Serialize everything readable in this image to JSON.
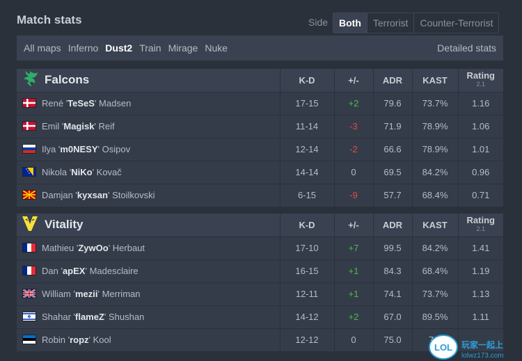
{
  "header": {
    "title": "Match stats",
    "side_label": "Side",
    "side_options": [
      "Both",
      "Terrorist",
      "Counter-Terrorist"
    ],
    "side_selected": "Both"
  },
  "maps": {
    "items": [
      "All maps",
      "Inferno",
      "Dust2",
      "Train",
      "Mirage",
      "Nuke"
    ],
    "selected": "Dust2",
    "detailed_label": "Detailed stats"
  },
  "columns": {
    "kd": "K-D",
    "diff": "+/-",
    "adr": "ADR",
    "kast": "KAST",
    "rating": "Rating",
    "rating_version": "2.1"
  },
  "teams": [
    {
      "name": "Falcons",
      "logo_icon": "falcons-logo",
      "players": [
        {
          "first": "René '",
          "nick": "TeSeS",
          "last": "' Madsen",
          "flag": "denmark",
          "kd": "17-15",
          "diff": "+2",
          "adr": "79.6",
          "kast": "73.7%",
          "rating": "1.16"
        },
        {
          "first": "Emil '",
          "nick": "Magisk",
          "last": "' Reif",
          "flag": "denmark",
          "kd": "11-14",
          "diff": "-3",
          "adr": "71.9",
          "kast": "78.9%",
          "rating": "1.06"
        },
        {
          "first": "Ilya '",
          "nick": "m0NESY",
          "last": "' Osipov",
          "flag": "russia",
          "kd": "12-14",
          "diff": "-2",
          "adr": "66.6",
          "kast": "78.9%",
          "rating": "1.01"
        },
        {
          "first": "Nikola '",
          "nick": "NiKo",
          "last": "' Kovač",
          "flag": "bosnia",
          "kd": "14-14",
          "diff": "0",
          "adr": "69.5",
          "kast": "84.2%",
          "rating": "0.96"
        },
        {
          "first": "Damjan '",
          "nick": "kyxsan",
          "last": "' Stoilkovski",
          "flag": "north-macedonia",
          "kd": "6-15",
          "diff": "-9",
          "adr": "57.7",
          "kast": "68.4%",
          "rating": "0.71"
        }
      ]
    },
    {
      "name": "Vitality",
      "logo_icon": "vitality-logo",
      "players": [
        {
          "first": "Mathieu '",
          "nick": "ZywOo",
          "last": "' Herbaut",
          "flag": "france",
          "kd": "17-10",
          "diff": "+7",
          "adr": "99.5",
          "kast": "84.2%",
          "rating": "1.41"
        },
        {
          "first": "Dan '",
          "nick": "apEX",
          "last": "' Madesclaire",
          "flag": "france",
          "kd": "16-15",
          "diff": "+1",
          "adr": "84.3",
          "kast": "68.4%",
          "rating": "1.19"
        },
        {
          "first": "William '",
          "nick": "mezii",
          "last": "' Merriman",
          "flag": "uk",
          "kd": "12-11",
          "diff": "+1",
          "adr": "74.1",
          "kast": "73.7%",
          "rating": "1.13"
        },
        {
          "first": "Shahar '",
          "nick": "flameZ",
          "last": "' Shushan",
          "flag": "israel",
          "kd": "14-12",
          "diff": "+2",
          "adr": "67.0",
          "kast": "89.5%",
          "rating": "1.11"
        },
        {
          "first": "Robin '",
          "nick": "ropz",
          "last": "' Kool",
          "flag": "estonia",
          "kd": "12-12",
          "diff": "0",
          "adr": "75.0",
          "kast": "73.",
          "rating": ""
        }
      ]
    }
  ],
  "colors": {
    "positive": "#4cbb4c",
    "negative": "#e04a4a",
    "falcons_green": "#2fae6a",
    "vitality_yellow": "#f5e13a"
  },
  "watermark": {
    "text": "LOL",
    "url": "lolwz173.com",
    "tagline": "玩家一起上"
  }
}
